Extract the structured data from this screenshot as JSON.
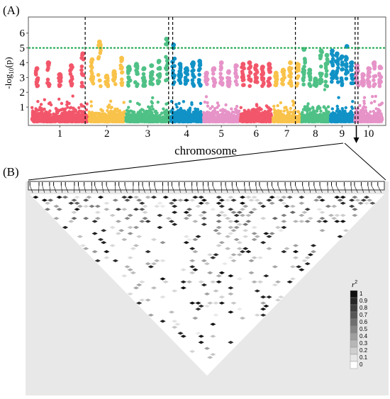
{
  "panels": {
    "a_label": "(A)",
    "b_label": "(B)"
  },
  "chart_data": [
    {
      "type": "scatter",
      "subtype": "manhattan",
      "xlabel": "chromosome",
      "ylabel_prefix": "-log",
      "ylabel_sub": "10",
      "ylabel_suffix": "(p)",
      "ylim": [
        0,
        6.8
      ],
      "yticks": [
        1,
        2,
        3,
        4,
        5,
        6
      ],
      "threshold": 5,
      "threshold_color": "#1aa64a",
      "grid": false,
      "chromosomes": [
        {
          "label": "1",
          "color": "#f2566a",
          "start": 0,
          "end": 14,
          "peaks": [
            3.6,
            4.0,
            3.2,
            3.8,
            4.6
          ]
        },
        {
          "label": "2",
          "color": "#f9c24a",
          "start": 14,
          "end": 23,
          "peaks": [
            4.2,
            5.4,
            3.1,
            3.4,
            4.3
          ]
        },
        {
          "label": "3",
          "color": "#4fc186",
          "start": 23,
          "end": 34,
          "peaks": [
            3.7,
            3.9,
            3.6,
            3.8,
            4.1,
            5.6
          ]
        },
        {
          "label": "4",
          "color": "#1192c6",
          "start": 34,
          "end": 42,
          "peaks": [
            5.2,
            3.9,
            3.6,
            4.0,
            4.1
          ]
        },
        {
          "label": "5",
          "color": "#e693c8",
          "start": 42,
          "end": 51,
          "peaks": [
            3.3,
            3.6,
            4.0,
            3.4,
            3.8
          ]
        },
        {
          "label": "6",
          "color": "#f2566a",
          "start": 51,
          "end": 59,
          "peaks": [
            3.9,
            4.0,
            3.8,
            3.7,
            3.9
          ]
        },
        {
          "label": "7",
          "color": "#f9c24a",
          "start": 59,
          "end": 66,
          "peaks": [
            3.3,
            3.5,
            4.0,
            3.9
          ]
        },
        {
          "label": "8",
          "color": "#4fc186",
          "start": 66,
          "end": 73,
          "peaks": [
            4.9,
            3.5,
            2.9,
            4.8,
            4.5
          ]
        },
        {
          "label": "9",
          "color": "#1192c6",
          "start": 73,
          "end": 79,
          "peaks": [
            4.8,
            4.6,
            4.4,
            5.1,
            4.0
          ]
        },
        {
          "label": "10",
          "color": "#e693c8",
          "start": 79,
          "end": 86,
          "peaks": [
            3.8,
            3.2,
            3.6,
            4.0,
            3.7
          ]
        }
      ],
      "highlight_lines_x": [
        13.2,
        33.6,
        34.6,
        64.6,
        79.2,
        79.9
      ],
      "zoom_x": 79.5
    },
    {
      "type": "heatmap",
      "subtype": "ld-triangle",
      "n_snps": 60,
      "legend_title": "r",
      "legend_title_sup": "2",
      "legend_ticks": [
        "1",
        "0.9",
        "0.8",
        "0.7",
        "0.6",
        "0.5",
        "0.4",
        "0.3",
        "0.2",
        "0.1",
        "0"
      ]
    }
  ]
}
